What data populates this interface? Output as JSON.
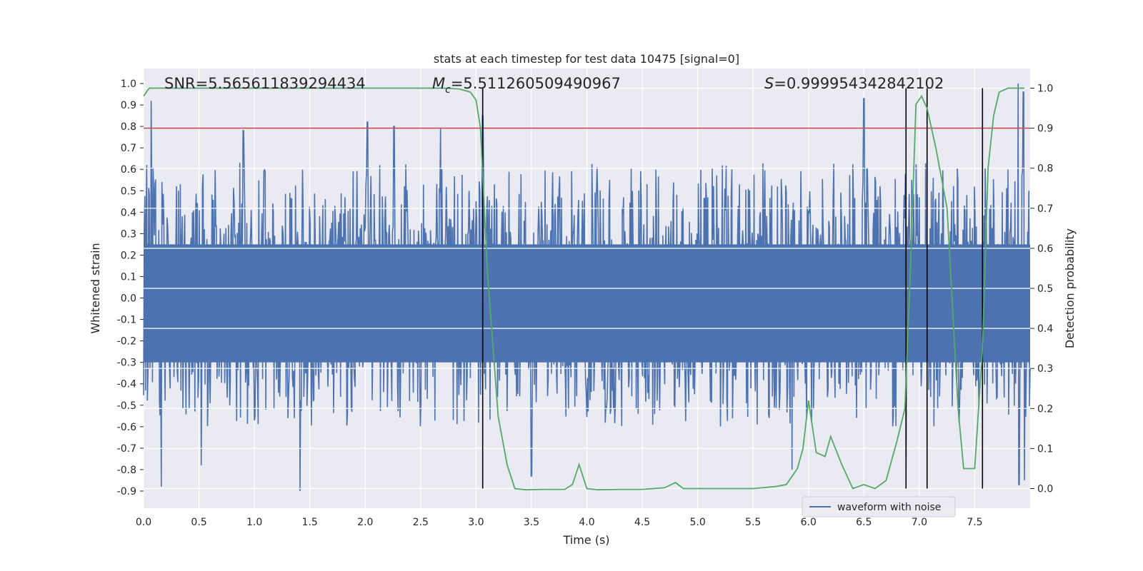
{
  "chart_data": {
    "type": "line",
    "title": "stats at each timestep for test data 10475 [signal=0]",
    "xlabel": "Time (s)",
    "ylabel": "Whitened strain",
    "y2label": "Detection probability",
    "xlim": [
      0,
      8
    ],
    "ylim": [
      -0.98,
      1.07
    ],
    "y2lim": [
      -0.049,
      1.049
    ],
    "x_ticks": [
      "0.0",
      "0.5",
      "1.0",
      "1.5",
      "2.0",
      "2.5",
      "3.0",
      "3.5",
      "4.0",
      "4.5",
      "5.0",
      "5.5",
      "6.0",
      "6.5",
      "7.0",
      "7.5"
    ],
    "y_ticks": [
      "1.0",
      "0.9",
      "0.8",
      "0.7",
      "0.6",
      "0.5",
      "0.4",
      "0.3",
      "0.2",
      "0.1",
      "0.0",
      "-0.1",
      "-0.2",
      "-0.3",
      "-0.4",
      "-0.5",
      "-0.6",
      "-0.7",
      "-0.8",
      "-0.9"
    ],
    "y2_ticks": [
      "1.0",
      "0.9",
      "0.8",
      "0.7",
      "0.6",
      "0.5",
      "0.4",
      "0.3",
      "0.2",
      "0.1",
      "0.0"
    ],
    "grid": true,
    "legend_position": "bottom-right",
    "stats": {
      "snr": "SNR=5.565611839294434",
      "mc_prefix": "M",
      "mc_sub": "c",
      "mc_value": "=5.511260509490967",
      "s_prefix": "S",
      "s_value": "=0.999954342842102"
    },
    "threshold_line": {
      "y2": 0.9,
      "color": "#c44e52"
    },
    "vertical_lines": [
      3.06,
      6.88,
      7.07,
      7.57
    ],
    "series": [
      {
        "name": "waveform with noise",
        "axis": "left",
        "color": "#4c72b0",
        "style": "noise",
        "envelope_upper": 0.58,
        "envelope_lower": -0.55,
        "peaks": [
          {
            "x": 0.07,
            "y": 0.92
          },
          {
            "x": 0.9,
            "y": 0.78
          },
          {
            "x": 2.02,
            "y": 0.82
          },
          {
            "x": 2.26,
            "y": 0.8
          },
          {
            "x": 2.68,
            "y": 0.79
          },
          {
            "x": 3.06,
            "y": 0.85
          },
          {
            "x": 6.5,
            "y": 0.93
          },
          {
            "x": 7.89,
            "y": 1.0
          },
          {
            "x": 7.94,
            "y": 0.96
          },
          {
            "x": 1.41,
            "y": -0.9
          },
          {
            "x": 0.16,
            "y": -0.88
          },
          {
            "x": 0.52,
            "y": -0.78
          },
          {
            "x": 3.5,
            "y": -0.83
          },
          {
            "x": 5.85,
            "y": -0.8
          },
          {
            "x": 6.88,
            "y": -0.78
          },
          {
            "x": 7.9,
            "y": -0.87
          },
          {
            "x": 7.95,
            "y": -0.85
          }
        ]
      },
      {
        "name": "",
        "axis": "right",
        "color": "#55a868",
        "style": "line",
        "x": [
          0.0,
          0.05,
          0.1,
          0.5,
          1.0,
          1.5,
          2.0,
          2.5,
          2.7,
          2.85,
          2.95,
          3.0,
          3.04,
          3.1,
          3.2,
          3.28,
          3.35,
          3.45,
          3.6,
          3.8,
          3.87,
          3.93,
          4.0,
          4.1,
          4.3,
          4.5,
          4.7,
          4.8,
          4.87,
          5.0,
          5.2,
          5.5,
          5.7,
          5.8,
          5.85,
          5.9,
          5.95,
          6.0,
          6.07,
          6.15,
          6.2,
          6.3,
          6.4,
          6.5,
          6.6,
          6.7,
          6.8,
          6.87,
          6.92,
          6.97,
          7.02,
          7.07,
          7.15,
          7.25,
          7.35,
          7.4,
          7.5,
          7.57,
          7.62,
          7.67,
          7.72,
          7.8,
          7.95
        ],
        "y": [
          0.98,
          1.0,
          1.0,
          1.0,
          1.0,
          1.0,
          1.0,
          1.0,
          1.0,
          0.998,
          0.99,
          0.97,
          0.9,
          0.55,
          0.18,
          0.06,
          0.0,
          -0.003,
          -0.002,
          -0.002,
          0.01,
          0.06,
          0.0,
          -0.003,
          -0.002,
          -0.002,
          0.002,
          0.015,
          0.0,
          0.0,
          0.0,
          0.0,
          0.005,
          0.01,
          0.03,
          0.05,
          0.1,
          0.22,
          0.09,
          0.08,
          0.13,
          0.06,
          0.0,
          0.01,
          0.0,
          0.02,
          0.12,
          0.2,
          0.55,
          0.96,
          0.98,
          0.95,
          0.85,
          0.7,
          0.2,
          0.05,
          0.05,
          0.35,
          0.8,
          0.93,
          0.99,
          1.0,
          1.0
        ]
      }
    ]
  }
}
